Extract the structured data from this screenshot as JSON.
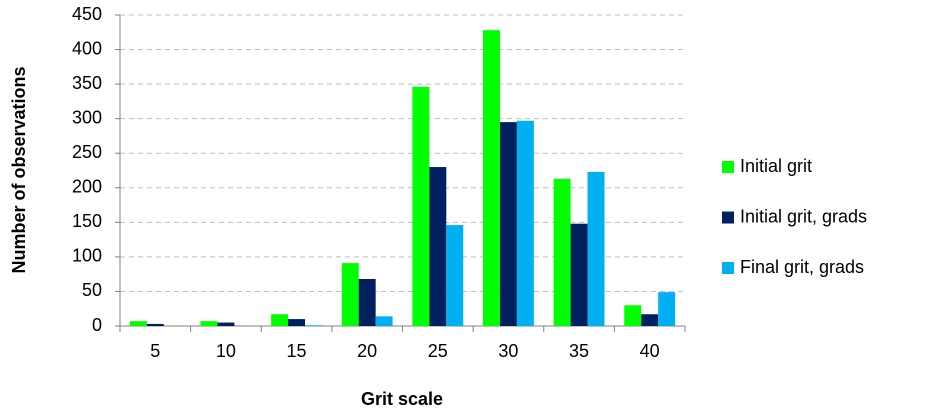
{
  "chart_data": {
    "type": "bar",
    "x_label": "Grit scale",
    "y_label": "Number of observations",
    "categories": [
      "5",
      "10",
      "15",
      "20",
      "25",
      "30",
      "35",
      "40"
    ],
    "series": [
      {
        "name": "Initial grit",
        "color": "#00ff00",
        "values": [
          7,
          7,
          17,
          91,
          346,
          428,
          213,
          30
        ]
      },
      {
        "name": "Initial grit, grads",
        "color": "#002060",
        "values": [
          3,
          5,
          10,
          68,
          230,
          295,
          148,
          17
        ]
      },
      {
        "name": "Final grit, grads",
        "color": "#00b0f0",
        "values": [
          0,
          0,
          1,
          14,
          146,
          297,
          223,
          49
        ]
      }
    ],
    "ylim": [
      0,
      450
    ],
    "yticks": [
      0,
      50,
      100,
      150,
      200,
      250,
      300,
      350,
      400,
      450
    ],
    "grid": true,
    "legend": "right"
  }
}
